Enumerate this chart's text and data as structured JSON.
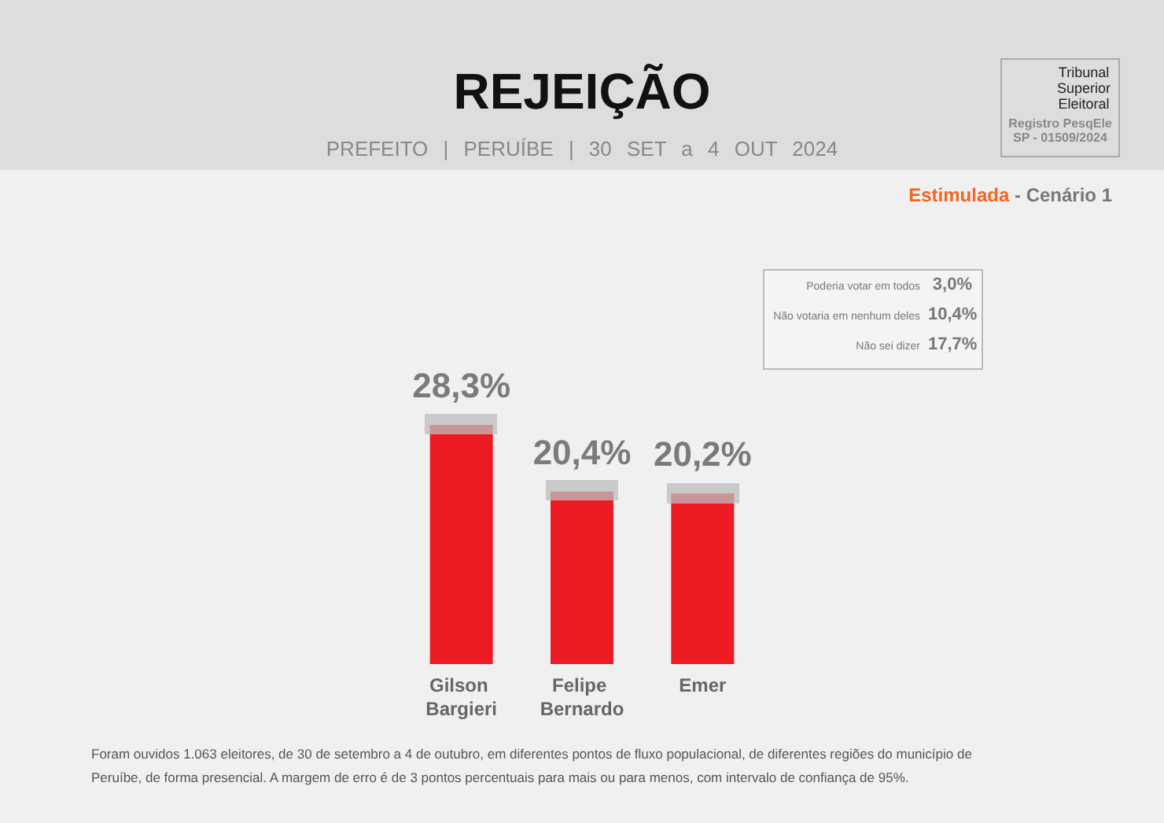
{
  "chart_data": {
    "type": "bar",
    "title": "REJEIÇÃO",
    "subtitle": "PREFEITO | PERUÍBE | 30 SET a 4 OUT 2024",
    "categories": [
      "Gilson Bargieri",
      "Felipe Bernardo",
      "Emer"
    ],
    "values": [
      28.3,
      20.4,
      20.2
    ],
    "value_labels": [
      "28,3%",
      "20,4%",
      "20,2%"
    ],
    "color": "#ed1c24",
    "annotations": [
      "Estimulada",
      "- Cenário 1",
      "Poderia votar em todos",
      "3,0%",
      "Não votaria em nenhum deles",
      "10,4%",
      "Não sei dizer",
      "17,7%",
      "Tribunal Superior Eleitoral",
      "Registro PesqEle SP - 01509/2024",
      "Foram ouvidos 1.063 eleitores, de 30 de setembro a 4 de outubro, em diferentes pontos de fluxo populacional, de diferentes regiões do município de Peruíbe, de forma presencial. A margem de erro é de 3 pontos percentuais para mais ou para menos, com intervalo de confiança de 95%."
    ]
  }
}
